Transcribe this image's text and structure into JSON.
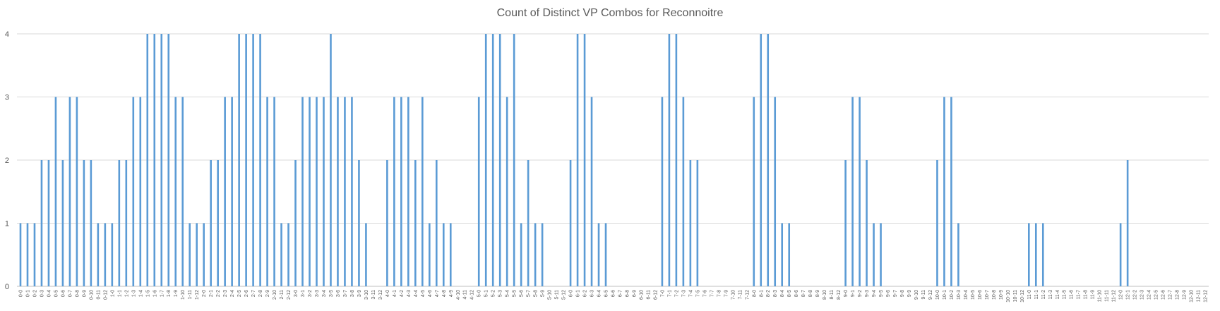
{
  "chart_data": {
    "type": "bar",
    "title": "Count of Distinct VP Combos for Reconnoitre",
    "xlabel": "",
    "ylabel": "",
    "ylim": [
      0,
      4
    ],
    "yticks": [
      "0",
      "1",
      "2",
      "3",
      "4"
    ],
    "grid": "horizontal",
    "legend": "none",
    "bar_color": "#5B9BD5",
    "categories": [
      "0-0",
      "0-1",
      "0-2",
      "0-3",
      "0-4",
      "0-5",
      "0-6",
      "0-7",
      "0-8",
      "0-9",
      "0-10",
      "0-11",
      "0-12",
      "1-0",
      "1-1",
      "1-2",
      "1-3",
      "1-4",
      "1-5",
      "1-6",
      "1-7",
      "1-8",
      "1-9",
      "1-10",
      "1-11",
      "1-12",
      "2-0",
      "2-1",
      "2-2",
      "2-3",
      "2-4",
      "2-5",
      "2-6",
      "2-7",
      "2-8",
      "2-9",
      "2-10",
      "2-11",
      "2-12",
      "3-0",
      "3-1",
      "3-2",
      "3-3",
      "3-4",
      "3-5",
      "3-6",
      "3-7",
      "3-8",
      "3-9",
      "3-10",
      "3-11",
      "3-12",
      "4-0",
      "4-1",
      "4-2",
      "4-3",
      "4-4",
      "4-5",
      "4-6",
      "4-7",
      "4-8",
      "4-9",
      "4-10",
      "4-11",
      "4-12",
      "5-0",
      "5-1",
      "5-2",
      "5-3",
      "5-4",
      "5-5",
      "5-6",
      "5-7",
      "5-8",
      "5-9",
      "5-10",
      "5-11",
      "5-12",
      "6-0",
      "6-1",
      "6-2",
      "6-3",
      "6-4",
      "6-5",
      "6-6",
      "6-7",
      "6-8",
      "6-9",
      "6-10",
      "6-11",
      "6-12",
      "7-0",
      "7-1",
      "7-2",
      "7-3",
      "7-4",
      "7-5",
      "7-6",
      "7-7",
      "7-8",
      "7-9",
      "7-10",
      "7-11",
      "7-12",
      "8-0",
      "8-1",
      "8-2",
      "8-3",
      "8-4",
      "8-5",
      "8-6",
      "8-7",
      "8-8",
      "8-9",
      "8-10",
      "8-11",
      "8-12",
      "9-0",
      "9-1",
      "9-2",
      "9-3",
      "9-4",
      "9-5",
      "9-6",
      "9-7",
      "9-8",
      "9-9",
      "9-10",
      "9-11",
      "9-12",
      "10-0",
      "10-1",
      "10-2",
      "10-3",
      "10-4",
      "10-5",
      "10-6",
      "10-7",
      "10-8",
      "10-9",
      "10-10",
      "10-11",
      "10-12",
      "11-0",
      "11-1",
      "11-2",
      "11-3",
      "11-4",
      "11-5",
      "11-6",
      "11-7",
      "11-8",
      "11-9",
      "11-10",
      "11-11",
      "11-12",
      "12-0",
      "12-1",
      "12-2",
      "12-3",
      "12-4",
      "12-5",
      "12-6",
      "12-7",
      "12-8",
      "12-9",
      "12-10",
      "12-11",
      "12-12"
    ],
    "values": [
      1,
      1,
      1,
      2,
      2,
      3,
      2,
      3,
      3,
      2,
      2,
      1,
      1,
      1,
      2,
      2,
      3,
      3,
      4,
      4,
      4,
      4,
      3,
      3,
      1,
      1,
      1,
      2,
      2,
      3,
      3,
      4,
      4,
      4,
      4,
      3,
      3,
      1,
      1,
      2,
      3,
      3,
      3,
      3,
      4,
      3,
      3,
      3,
      2,
      1,
      0,
      0,
      2,
      3,
      3,
      3,
      2,
      3,
      1,
      2,
      1,
      1,
      0,
      0,
      0,
      3,
      4,
      4,
      4,
      3,
      4,
      1,
      2,
      1,
      1,
      0,
      0,
      0,
      2,
      4,
      4,
      3,
      1,
      1,
      0,
      0,
      0,
      0,
      0,
      0,
      0,
      3,
      4,
      4,
      3,
      2,
      2,
      0,
      0,
      0,
      0,
      0,
      0,
      0,
      3,
      4,
      4,
      3,
      1,
      1,
      0,
      0,
      0,
      0,
      0,
      0,
      0,
      2,
      3,
      3,
      2,
      1,
      1,
      0,
      0,
      0,
      0,
      0,
      0,
      0,
      2,
      3,
      3,
      1,
      0,
      0,
      0,
      0,
      0,
      0,
      0,
      0,
      0,
      1,
      1,
      1,
      0,
      0,
      0,
      0,
      0,
      0,
      0,
      0,
      0,
      0,
      1,
      2,
      0,
      0,
      0,
      0,
      0,
      0,
      0,
      0,
      0,
      0,
      0
    ]
  }
}
